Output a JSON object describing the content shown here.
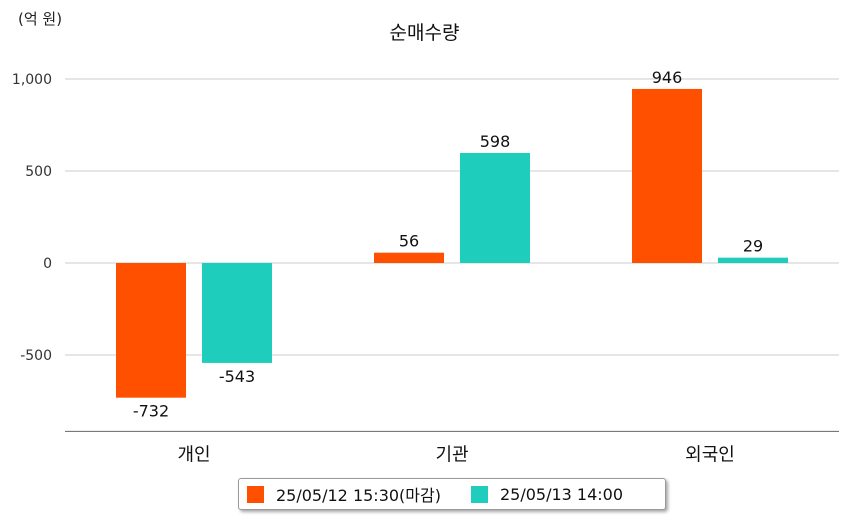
{
  "chart_data": {
    "type": "bar",
    "title": "순매수량",
    "unit_label": "(억 원)",
    "categories": [
      "개인",
      "기관",
      "외국인"
    ],
    "series": [
      {
        "name": "25/05/12 15:30(마감)",
        "color": "#ff5000",
        "values": [
          -732,
          56,
          946
        ]
      },
      {
        "name": "25/05/13 14:00",
        "color": "#1ecdbb",
        "values": [
          -543,
          598,
          29
        ]
      }
    ],
    "y_ticks": [
      1000,
      500,
      0,
      -500
    ],
    "y_tick_labels": [
      "1,000",
      "500",
      "0",
      "-500"
    ],
    "ylim": [
      -915,
      1000
    ],
    "grid": true,
    "legend_position": "bottom-center",
    "data_labels": true
  }
}
